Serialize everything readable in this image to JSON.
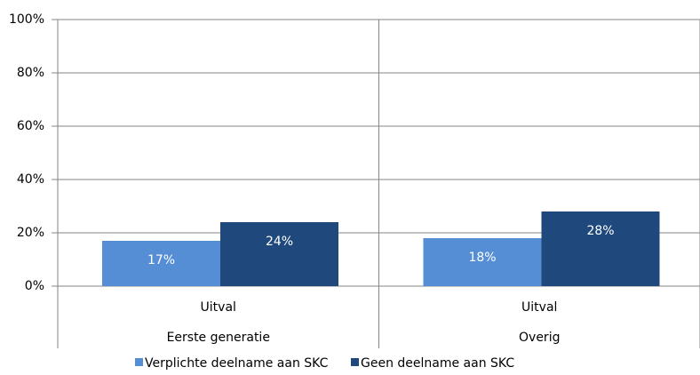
{
  "chart_data": {
    "type": "bar",
    "categories": [
      "Uitval",
      "Uitval"
    ],
    "groups": [
      "Eerste generatie",
      "Overig"
    ],
    "series": [
      {
        "name": "Verplichte deelname aan SKC",
        "color": "#558ed5",
        "values": [
          17,
          18
        ],
        "value_labels": [
          "17%",
          "18%"
        ]
      },
      {
        "name": "Geen deelname aan SKC",
        "color": "#1f497d",
        "values": [
          24,
          28
        ],
        "value_labels": [
          "24%",
          "28%"
        ]
      }
    ],
    "ylim": [
      0,
      100
    ],
    "yticks": [
      {
        "value": 0,
        "label": "0%"
      },
      {
        "value": 20,
        "label": "20%"
      },
      {
        "value": 40,
        "label": "40%"
      },
      {
        "value": 60,
        "label": "60%"
      },
      {
        "value": 80,
        "label": "80%"
      },
      {
        "value": 100,
        "label": "100%"
      }
    ],
    "grid": true,
    "legend": "bottom"
  }
}
